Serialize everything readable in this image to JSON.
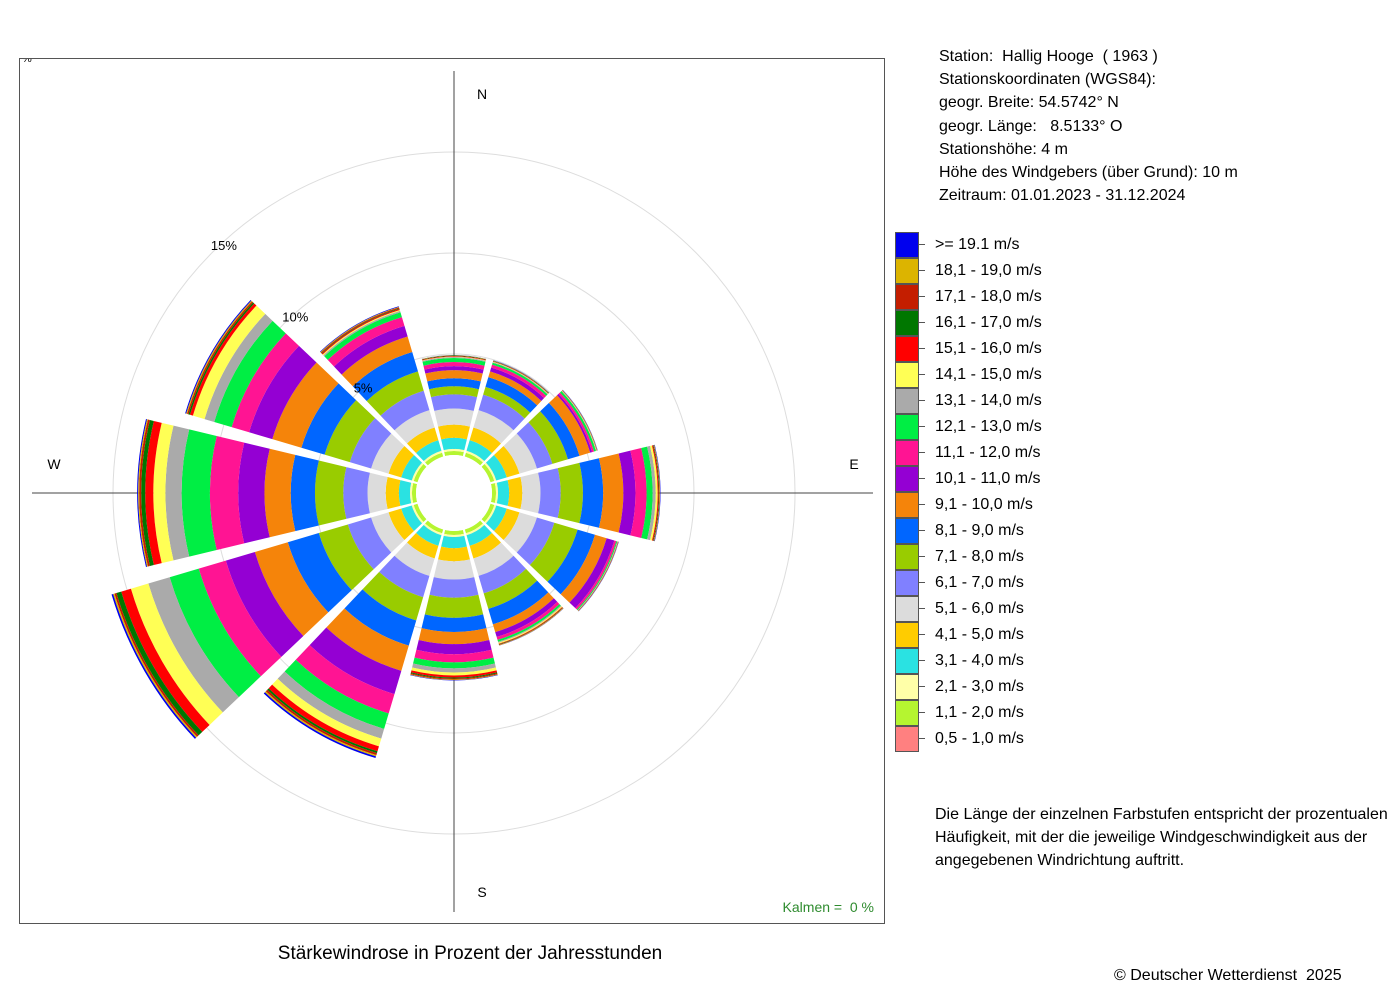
{
  "chart_data": {
    "type": "polar-stacked-bar",
    "title": "Stärkewindrose in Prozent der Jahresstunden",
    "directions": [
      "N",
      "NNE",
      "ENE",
      "E",
      "ESE",
      "SSE",
      "S",
      "SSW",
      "WSW",
      "W",
      "WNW",
      "NNW"
    ],
    "direction_angles_deg": [
      0,
      30,
      60,
      90,
      120,
      150,
      180,
      210,
      240,
      270,
      300,
      330
    ],
    "compass_labels": {
      "n": "N",
      "e": "E",
      "s": "S",
      "w": "W"
    },
    "ring_values_percent": [
      5,
      10,
      15
    ],
    "ring_labels": [
      "5%",
      "10%",
      "15%"
    ],
    "corner_unit": "%",
    "calms": {
      "label": "Kalmen",
      "value": "=  0 %"
    },
    "speed_classes": [
      {
        "label": "0,5 - 1,0 m/s",
        "color": "#ff8080"
      },
      {
        "label": "1,1 - 2,0 m/s",
        "color": "#b5f530"
      },
      {
        "label": "2,1 - 3,0 m/s",
        "color": "#ffffa8"
      },
      {
        "label": "3,1 - 4,0 m/s",
        "color": "#2ae2e2"
      },
      {
        "label": "4,1 - 5,0 m/s",
        "color": "#ffcc00"
      },
      {
        "label": "5,1 - 6,0 m/s",
        "color": "#dcdcdc"
      },
      {
        "label": "6,1 - 7,0 m/s",
        "color": "#8080ff"
      },
      {
        "label": "7,1 - 8,0 m/s",
        "color": "#99cc00"
      },
      {
        "label": "8,1 - 9,0 m/s",
        "color": "#0066ff"
      },
      {
        "label": "9,1 - 10,0 m/s",
        "color": "#f5840a"
      },
      {
        "label": "10,1 - 11,0 m/s",
        "color": "#9400d3"
      },
      {
        "label": "11,1 - 12,0 m/s",
        "color": "#ff1493"
      },
      {
        "label": "12,1 - 13,0 m/s",
        "color": "#00ee44"
      },
      {
        "label": "13,1 - 14,0 m/s",
        "color": "#aaaaaa"
      },
      {
        "label": "14,1 - 15,0 m/s",
        "color": "#ffff55"
      },
      {
        "label": "15,1 - 16,0 m/s",
        "color": "#ff0000"
      },
      {
        "label": "16,1 - 17,0 m/s",
        "color": "#007700"
      },
      {
        "label": "17,1 - 18,0 m/s",
        "color": "#c41e00"
      },
      {
        "label": "18,1 - 19,0 m/s",
        "color": "#dcb400"
      },
      {
        "label": ">= 19.1 m/s",
        "color": "#0000ee"
      }
    ],
    "cumulative_percent": [
      [
        0.0,
        0.2,
        0.3,
        0.85,
        1.5,
        2.3,
        3.0,
        3.4,
        3.8,
        4.2,
        4.4,
        4.6,
        4.8,
        4.85,
        4.87,
        4.9,
        4.92,
        4.93,
        4.94,
        4.95
      ],
      [
        0.0,
        0.2,
        0.3,
        0.85,
        1.5,
        2.4,
        3.2,
        3.6,
        4.1,
        4.4,
        4.6,
        4.75,
        4.85,
        4.88,
        4.9,
        4.92,
        4.94,
        4.95,
        4.96,
        4.97
      ],
      [
        0.0,
        0.2,
        0.3,
        0.85,
        1.5,
        2.4,
        3.2,
        4.0,
        4.6,
        5.15,
        5.25,
        5.35,
        5.45,
        5.47,
        5.49,
        5.5,
        5.51,
        5.52,
        5.53,
        5.54
      ],
      [
        0.0,
        0.2,
        0.3,
        0.85,
        1.5,
        2.4,
        3.4,
        4.5,
        5.5,
        6.5,
        7.1,
        7.65,
        7.95,
        8.1,
        8.2,
        8.25,
        8.28,
        8.3,
        8.32,
        8.34
      ],
      [
        0.0,
        0.2,
        0.3,
        0.85,
        1.5,
        2.4,
        3.3,
        4.5,
        5.4,
        6.0,
        6.4,
        6.5,
        6.55,
        6.57,
        6.58,
        6.59,
        6.6,
        6.61,
        6.62,
        6.63
      ],
      [
        0.0,
        0.2,
        0.3,
        0.85,
        1.5,
        2.4,
        3.3,
        4.1,
        4.9,
        5.3,
        5.55,
        5.7,
        5.8,
        5.85,
        5.9,
        5.93,
        5.95,
        5.97,
        5.99,
        6.0
      ],
      [
        0.0,
        0.2,
        0.3,
        0.85,
        1.5,
        2.4,
        3.3,
        4.3,
        5.0,
        5.6,
        6.1,
        6.5,
        6.8,
        7.0,
        7.15,
        7.25,
        7.3,
        7.35,
        7.38,
        7.4
      ],
      [
        0.0,
        0.2,
        0.3,
        0.85,
        1.5,
        2.4,
        3.5,
        4.7,
        6.0,
        7.3,
        8.5,
        9.5,
        10.3,
        10.8,
        11.2,
        11.45,
        11.55,
        11.65,
        11.72,
        11.8
      ],
      [
        0.0,
        0.2,
        0.3,
        0.85,
        1.5,
        2.4,
        3.6,
        5.1,
        6.7,
        8.4,
        9.9,
        11.3,
        12.8,
        13.9,
        14.8,
        15.3,
        15.55,
        15.65,
        15.72,
        15.8
      ],
      [
        0.0,
        0.2,
        0.3,
        0.85,
        1.5,
        2.4,
        3.6,
        5.0,
        6.2,
        7.5,
        8.8,
        10.2,
        11.6,
        12.4,
        13.0,
        13.4,
        13.6,
        13.7,
        13.75,
        13.8
      ],
      [
        0.0,
        0.2,
        0.3,
        0.85,
        1.5,
        2.4,
        3.5,
        4.8,
        6.0,
        7.5,
        8.7,
        9.6,
        10.5,
        11.0,
        11.6,
        11.75,
        11.83,
        11.9,
        11.95,
        12.0
      ],
      [
        0.0,
        0.2,
        0.3,
        0.85,
        1.5,
        2.4,
        3.4,
        4.4,
        5.4,
        6.2,
        6.75,
        7.2,
        7.45,
        7.52,
        7.57,
        7.62,
        7.65,
        7.7,
        7.73,
        7.76
      ]
    ]
  },
  "station": {
    "line1": "Station:  Hallig Hooge  ( 1963 )",
    "line2": "Stationskoordinaten (WGS84):",
    "line3": "geogr. Breite: 54.5742° N",
    "line4": "geogr. Länge:   8.5133° O",
    "line5": "Stationshöhe: 4 m",
    "line6": "Höhe des Windgebers (über Grund): 10 m",
    "line7": "Zeitraum: 01.01.2023 - 31.12.2024"
  },
  "explanation": {
    "line1": "Die Länge der einzelnen Farbstufen entspricht der prozentualen",
    "line2": "Häufigkeit, mit der die jeweilige Windgeschwindigkeit aus der",
    "line3": "angegebenen Windrichtung auftritt."
  },
  "copyright": "© Deutscher Wetterdienst  2025"
}
